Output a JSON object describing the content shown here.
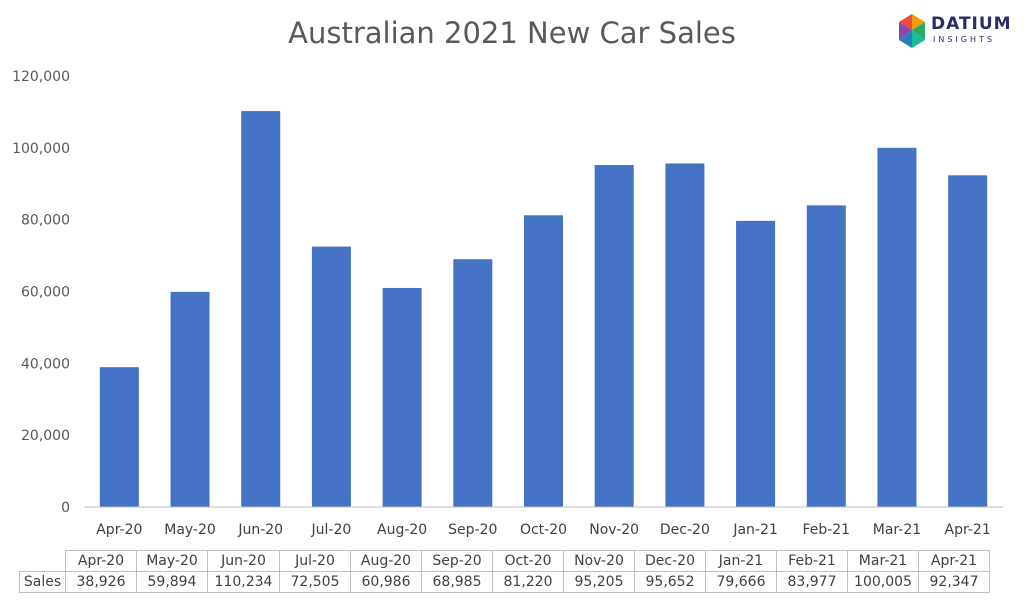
{
  "colors": {
    "bar": "#4472C4",
    "grid": "#d9d9d9",
    "axis": "#bfbfbf"
  },
  "logo": {
    "name": "DATIUM",
    "sub": "INSIGHTS"
  },
  "chart_data": {
    "type": "bar",
    "title": "Australian 2021 New Car Sales",
    "categories": [
      "Apr-20",
      "May-20",
      "Jun-20",
      "Jul-20",
      "Aug-20",
      "Sep-20",
      "Oct-20",
      "Nov-20",
      "Dec-20",
      "Jan-21",
      "Feb-21",
      "Mar-21",
      "Apr-21"
    ],
    "series": [
      {
        "name": "Sales",
        "values": [
          38926,
          59894,
          110234,
          72505,
          60986,
          68985,
          81220,
          95205,
          95652,
          79666,
          83977,
          100005,
          92347
        ]
      }
    ],
    "value_labels": [
      "38,926",
      "59,894",
      "110,234",
      "72,505",
      "60,986",
      "68,985",
      "81,220",
      "95,205",
      "95,652",
      "79,666",
      "83,977",
      "100,005",
      "92,347"
    ],
    "yticks": [
      "0",
      "20,000",
      "40,000",
      "60,000",
      "80,000",
      "100,000",
      "120,000"
    ],
    "ylim": [
      0,
      120000
    ],
    "grid": false,
    "legend": "data table below chart"
  }
}
